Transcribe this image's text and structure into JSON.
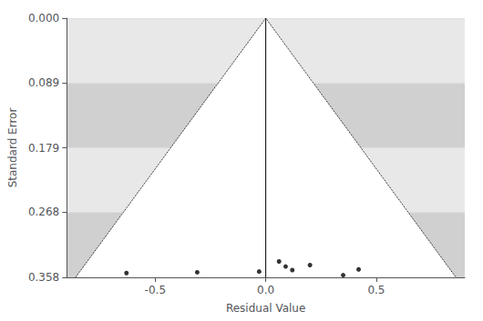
{
  "chart_data": {
    "type": "scatter",
    "xlabel": "Residual Value",
    "ylabel": "Standard Error",
    "xlim": [
      -0.9,
      0.9
    ],
    "ylim": [
      0.358,
      0.0
    ],
    "xticks": [
      -0.5,
      {
        "value": 0.0,
        "label": "0.0"
      },
      0.5
    ],
    "yticks": [
      {
        "value": 0.0,
        "label": "0.000"
      },
      {
        "value": 0.089,
        "label": "0.089"
      },
      {
        "value": 0.179,
        "label": "0.179"
      },
      {
        "value": 0.268,
        "label": "0.268"
      },
      {
        "value": 0.358,
        "label": "0.358"
      }
    ],
    "grid": true,
    "series": [
      {
        "type": "line",
        "line_style": "dotted",
        "color": "#ffffff",
        "x": [
          -0.86,
          0.0,
          0.86
        ],
        "values": [
          0.358,
          0.0,
          0.358
        ]
      },
      {
        "type": "line",
        "line_style": "solid",
        "color": "#000000",
        "x": [
          0.0,
          0.0
        ],
        "values": [
          0.0,
          0.358
        ]
      },
      {
        "type": "scatter",
        "marker": "circle",
        "color": "#000000",
        "x": [
          -0.63,
          -0.31,
          -0.03,
          0.06,
          0.09,
          0.12,
          0.2,
          0.35,
          0.42
        ],
        "values": [
          0.352,
          0.351,
          0.35,
          0.336,
          0.343,
          0.348,
          0.341,
          0.355,
          0.347
        ]
      }
    ]
  }
}
